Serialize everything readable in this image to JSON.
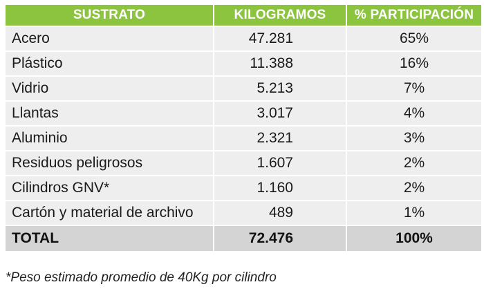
{
  "table": {
    "headers": {
      "substrate": "SUSTRATO",
      "kilograms": "KILOGRAMOS",
      "participation": "% PARTICIPACIÓN"
    },
    "rows": [
      {
        "substrate": "Acero",
        "kilograms": "47.281",
        "participation": "65%"
      },
      {
        "substrate": "Plástico",
        "kilograms": "11.388",
        "participation": "16%"
      },
      {
        "substrate": "Vidrio",
        "kilograms": "5.213",
        "participation": "7%"
      },
      {
        "substrate": "Llantas",
        "kilograms": "3.017",
        "participation": "4%"
      },
      {
        "substrate": "Aluminio",
        "kilograms": "2.321",
        "participation": "3%"
      },
      {
        "substrate": "Residuos peligrosos",
        "kilograms": "1.607",
        "participation": "2%"
      },
      {
        "substrate": "Cilindros GNV*",
        "kilograms": "1.160",
        "participation": "2%"
      },
      {
        "substrate": "Cartón y material de archivo",
        "kilograms": "489",
        "participation": "1%"
      }
    ],
    "total": {
      "substrate": "TOTAL",
      "kilograms": "72.476",
      "participation": "100%"
    }
  },
  "footnote": "*Peso estimado promedio de 40Kg por cilindro",
  "colors": {
    "header_bg": "#8cc440",
    "row_bg": "#eeeeee",
    "total_bg": "#d4d4d4"
  }
}
